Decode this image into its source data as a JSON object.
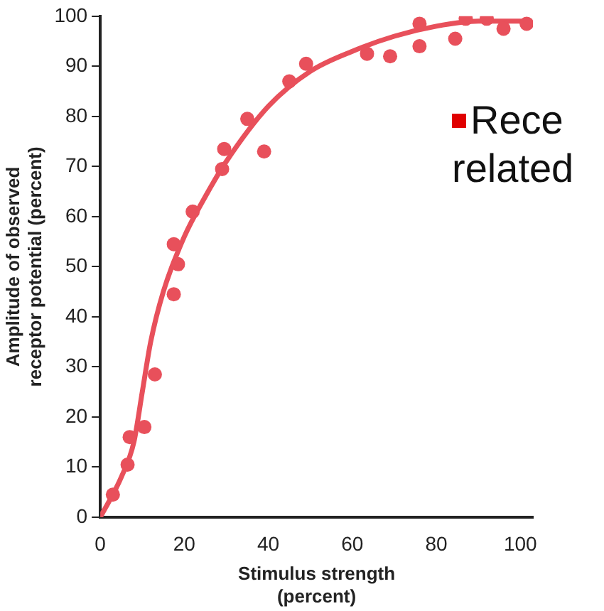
{
  "chart_data": {
    "type": "scatter",
    "xlabel": "Stimulus strength\n(percent)",
    "ylabel": "Amplitude of observed\nreceptor potential (percent)",
    "annotations": [
      "Rece",
      "related"
    ],
    "xlim": [
      0,
      103
    ],
    "xticks": [
      0,
      20,
      40,
      60,
      80,
      100
    ],
    "ylim": [
      0,
      100
    ],
    "yticks": [
      0,
      10,
      20,
      30,
      40,
      50,
      60,
      70,
      80,
      90,
      100
    ],
    "grid": false,
    "legend": false,
    "marker": "circle",
    "series": [
      {
        "type": "scatter",
        "color": "#e8505b",
        "x": [
          3,
          6.5,
          7,
          10.5,
          13,
          17.5,
          17.5,
          18.5,
          22,
          29,
          29.5,
          35,
          39,
          45,
          49,
          63.5,
          69,
          76,
          76,
          84.5,
          87,
          92,
          96,
          101.5
        ],
        "values": [
          4.5,
          10.5,
          16,
          18,
          28.5,
          44.5,
          54.5,
          50.5,
          61,
          69.5,
          73.5,
          79.5,
          73,
          87,
          90.5,
          92.5,
          92,
          94,
          98.5,
          95.5,
          99.5,
          99.5,
          97.5,
          98.5
        ]
      },
      {
        "type": "line",
        "color": "#e8505b",
        "marker": "none",
        "x": [
          0,
          5,
          8,
          10,
          12,
          15,
          20,
          25,
          30,
          40,
          50,
          60,
          70,
          80,
          90,
          100
        ],
        "values": [
          0,
          8,
          15,
          25,
          35,
          45,
          56,
          64,
          71,
          82,
          89,
          93,
          96,
          98,
          99,
          99
        ]
      }
    ]
  }
}
